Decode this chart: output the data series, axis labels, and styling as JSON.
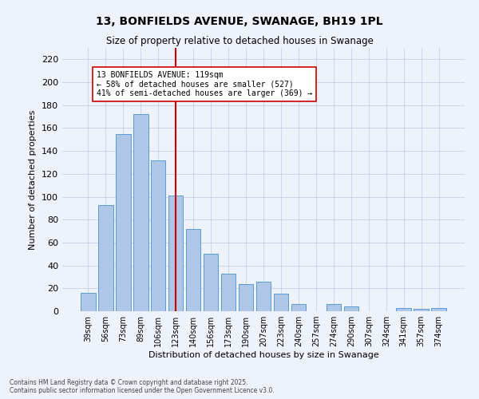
{
  "title": "13, BONFIELDS AVENUE, SWANAGE, BH19 1PL",
  "subtitle": "Size of property relative to detached houses in Swanage",
  "xlabel": "Distribution of detached houses by size in Swanage",
  "ylabel": "Number of detached properties",
  "categories": [
    "39sqm",
    "56sqm",
    "73sqm",
    "89sqm",
    "106sqm",
    "123sqm",
    "140sqm",
    "156sqm",
    "173sqm",
    "190sqm",
    "207sqm",
    "223sqm",
    "240sqm",
    "257sqm",
    "274sqm",
    "290sqm",
    "307sqm",
    "324sqm",
    "341sqm",
    "357sqm",
    "374sqm"
  ],
  "values": [
    16,
    93,
    155,
    172,
    132,
    101,
    72,
    50,
    33,
    24,
    26,
    15,
    6,
    0,
    6,
    4,
    0,
    0,
    3,
    2,
    3
  ],
  "bar_color": "#aec6e8",
  "bar_edge_color": "#5b9bd5",
  "vline_x": 5,
  "vline_color": "#cc0000",
  "annotation_text": "13 BONFIELDS AVENUE: 119sqm\n← 58% of detached houses are smaller (527)\n41% of semi-detached houses are larger (369) →",
  "annotation_box_color": "#ffffff",
  "annotation_box_edge": "#cc0000",
  "ylim": [
    0,
    230
  ],
  "yticks": [
    0,
    20,
    40,
    60,
    80,
    100,
    120,
    140,
    160,
    180,
    200,
    220
  ],
  "background_color": "#eef2fa",
  "footer1": "Contains HM Land Registry data © Crown copyright and database right 2025.",
  "footer2": "Contains public sector information licensed under the Open Government Licence v3.0."
}
